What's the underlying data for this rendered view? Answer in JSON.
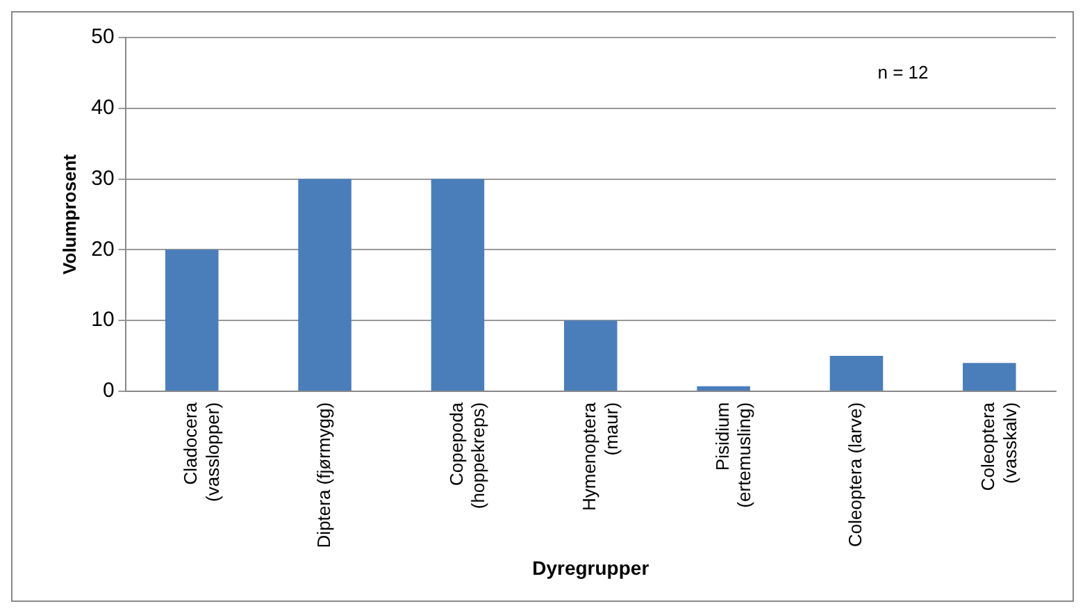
{
  "chart_data": {
    "type": "bar",
    "xlabel": "Dyregrupper",
    "ylabel": "Volumprosent",
    "categories": [
      "Cladocera\n(vasslopper)",
      "Diptera (fjørmygg)",
      "Copepoda\n(hoppekreps)",
      "Hymenoptera\n(maur)",
      "Pisidium\n(ertemusling)",
      "Coleoptera (larve)",
      "Coleoptera\n(vasskalv)"
    ],
    "values": [
      20,
      30,
      30,
      10,
      0.7,
      5,
      4
    ],
    "color": "#4a7ebb",
    "ylim": [
      0,
      50
    ],
    "yticks": [
      0,
      10,
      20,
      30,
      40,
      50
    ],
    "grid": "y",
    "legend": false,
    "annotations": [
      "n = 12"
    ]
  }
}
